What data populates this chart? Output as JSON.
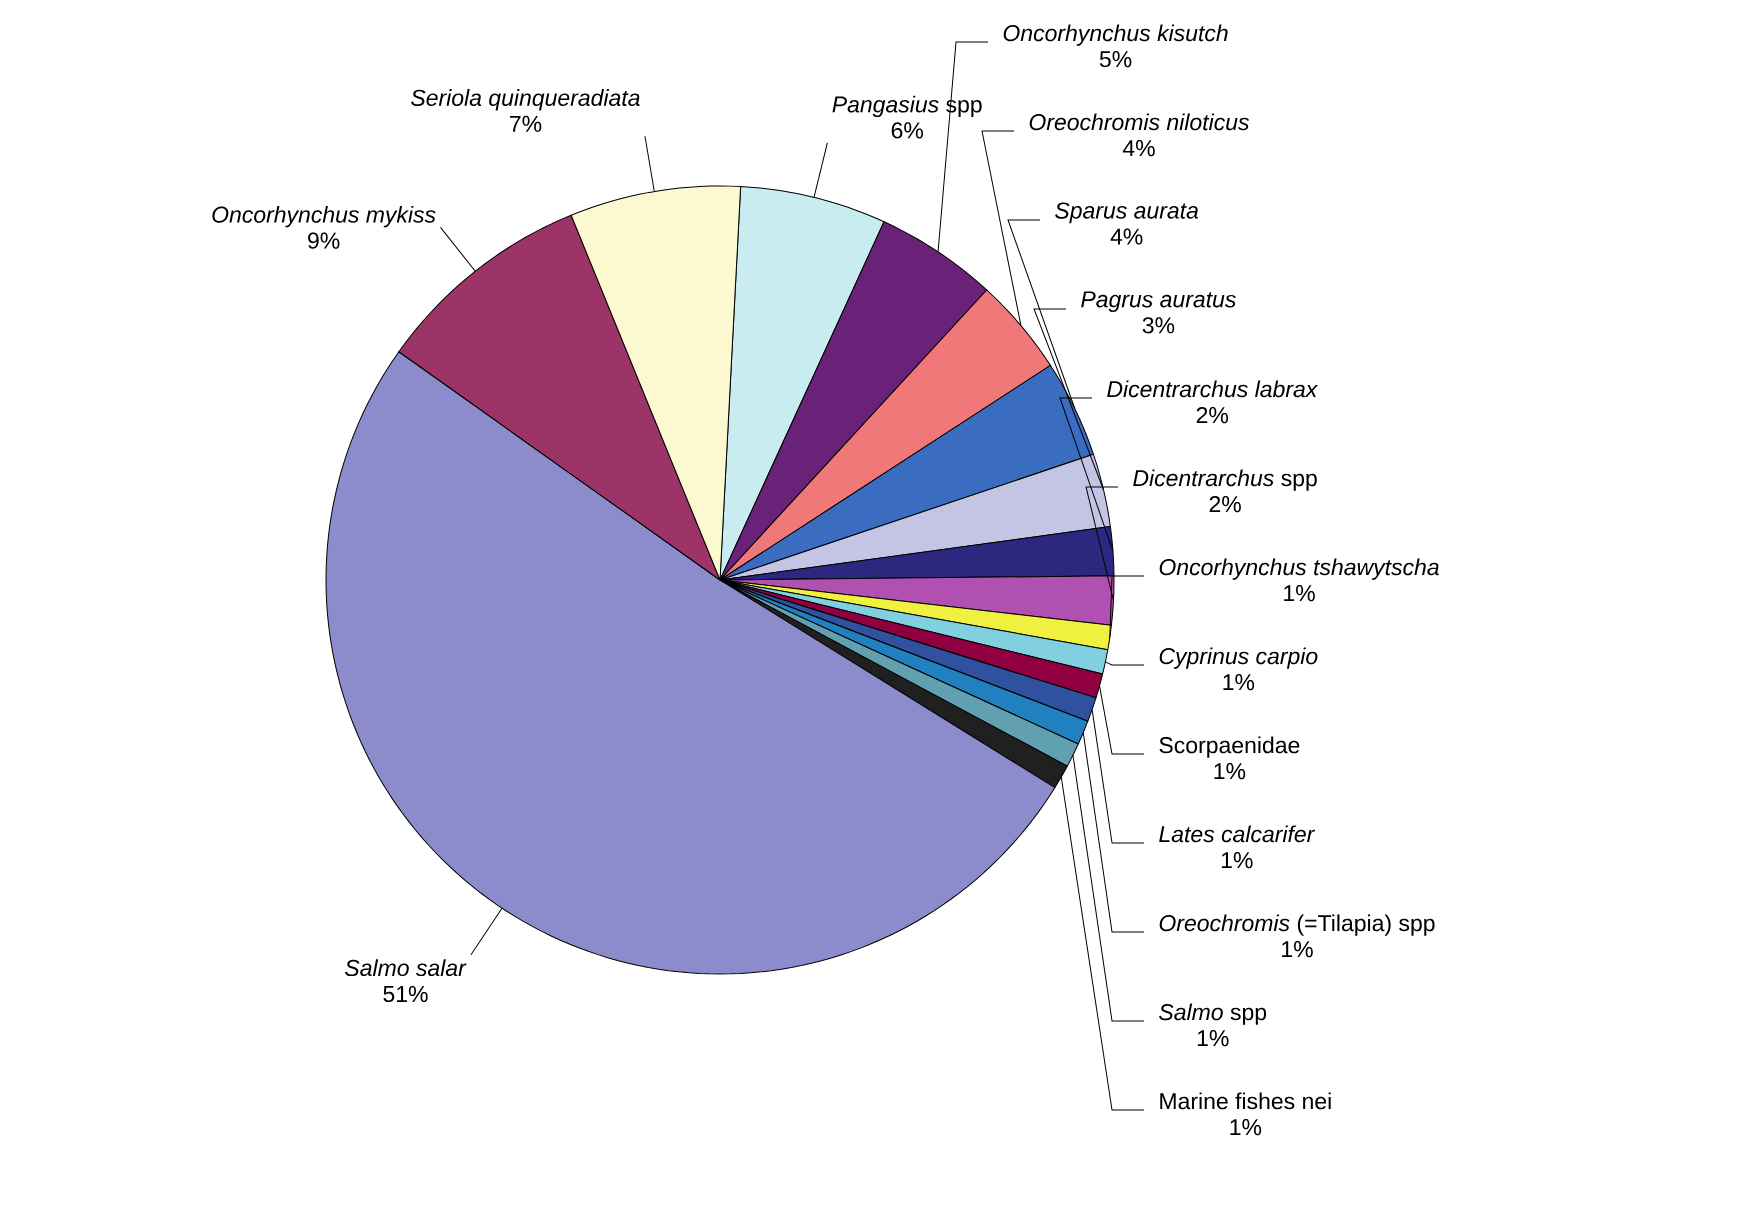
{
  "chart_data": {
    "type": "pie",
    "categories": [
      "*Pangasius* spp",
      "*Oncorhynchus kisutch*",
      "*Oreochromis niloticus*",
      "*Sparus aurata*",
      "*Pagrus auratus*",
      "*Dicentrarchus labrax*",
      "*Dicentrarchus* spp",
      "*Oncorhynchus tshawytscha*",
      "*Cyprinus carpio*",
      "Scorpaenidae",
      "*Lates calcarifer*",
      "*Oreochromis* (=Tilapia) spp",
      "*Salmo* spp",
      "Marine fishes nei",
      "*Salmo salar*",
      "*Oncorhynchus mykiss*",
      "*Seriola quinqueradiata*"
    ],
    "values": [
      6,
      5,
      4,
      4,
      3,
      2,
      2,
      1,
      1,
      1,
      1,
      1,
      1,
      1,
      51,
      9,
      7
    ],
    "value_labels": [
      "6%",
      "5%",
      "4%",
      "4%",
      "3%",
      "2%",
      "2%",
      "1%",
      "1%",
      "1%",
      "1%",
      "1%",
      "1%",
      "1%",
      "51%",
      "9%",
      "7%"
    ],
    "colors": [
      "#c8ecf0",
      "#6a2178",
      "#f07878",
      "#3a6cc0",
      "#c4c4e4",
      "#2c2880",
      "#b050b0",
      "#f0f040",
      "#80d0e0",
      "#900040",
      "#3050a0",
      "#2080c0",
      "#60a0b0",
      "#202020",
      "#8c8ccc",
      "#9c3468",
      "#fcf8d0"
    ]
  }
}
